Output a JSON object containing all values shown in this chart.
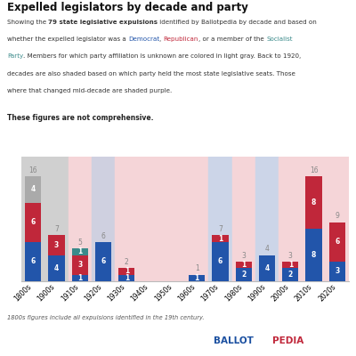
{
  "decades": [
    "1800s",
    "1900s",
    "1910s",
    "1920s",
    "1930s",
    "1940s",
    "1950s",
    "1960s",
    "1970s",
    "1980s",
    "1990s",
    "2000s",
    "2010s",
    "2020s"
  ],
  "democrat": [
    6,
    4,
    1,
    6,
    1,
    0,
    0,
    1,
    6,
    2,
    4,
    2,
    8,
    3
  ],
  "republican": [
    6,
    3,
    3,
    0,
    1,
    0,
    0,
    0,
    1,
    1,
    0,
    1,
    8,
    6
  ],
  "socialist": [
    0,
    0,
    1,
    0,
    0,
    0,
    0,
    0,
    0,
    0,
    0,
    0,
    0,
    0
  ],
  "unknown": [
    4,
    0,
    0,
    0,
    0,
    0,
    0,
    0,
    0,
    0,
    0,
    0,
    0,
    0
  ],
  "totals": [
    16,
    7,
    5,
    6,
    2,
    0,
    0,
    1,
    7,
    3,
    4,
    3,
    16,
    9
  ],
  "bg_colors": [
    "#d0d0d0",
    "#d0d0d0",
    "#f5d5d8",
    "#cfd0e0",
    "#f5d5d8",
    "#f5d5d8",
    "#f5d5d8",
    "#f5d5d8",
    "#ccd5e8",
    "#f5d5d8",
    "#ccd5e8",
    "#f5d5d8",
    "#f5d5d8",
    "#f5d5d8"
  ],
  "dem_color": "#2255aa",
  "rep_color": "#c0273a",
  "soc_color": "#3a8a8a",
  "unk_color": "#aaaaaa",
  "title": "Expelled legislators by decade and party",
  "footnote": "1800s figures include all expulsions identified in the 19th century.",
  "ballotpedia_blue": "#1a4fa0",
  "ballotpedia_red": "#c0273a"
}
